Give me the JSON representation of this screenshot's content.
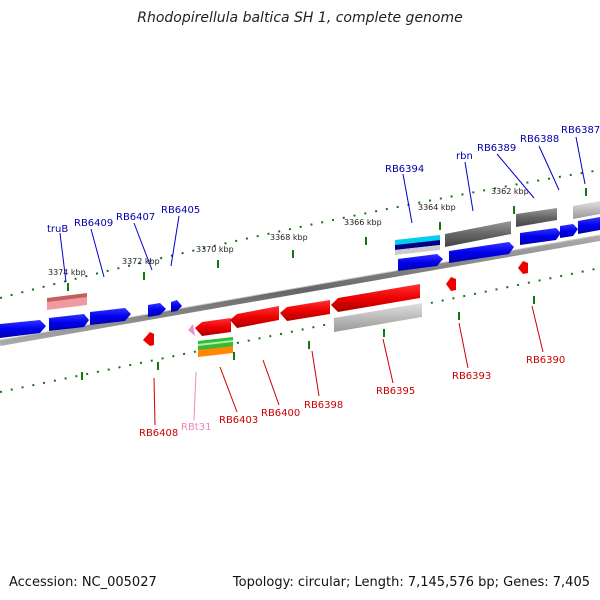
{
  "title": "Rhodopirellula baltica SH 1, complete genome",
  "footer": {
    "accession": "Accession: NC_005027",
    "info": "Topology: circular; Length: 7,145,576 bp; Genes: 7,405"
  },
  "colors": {
    "forward_gene": "#0000ee",
    "reverse_gene": "#dd0000",
    "gene_label_forward": "#0000aa",
    "gene_label_reverse": "#cc0000",
    "rna_label": "#ee88bb",
    "tick": "#117711",
    "backbone": "#777777",
    "gray_gene": "#666666",
    "lightgray_gene": "#bbbbbb",
    "cyan_gene": "#00ccee",
    "green_gene": "#33bb33",
    "orange_gene": "#ff8800",
    "pink_gene": "#f0a0a8"
  },
  "scale_labels": [
    {
      "text": "3374 kbp"
    },
    {
      "text": "3372 kbp"
    },
    {
      "text": "3370 kbp"
    },
    {
      "text": "3368 kbp"
    },
    {
      "text": "3366 kbp"
    },
    {
      "text": "3364 kbp"
    },
    {
      "text": "3362 kbp"
    }
  ],
  "forward_labels": [
    "truB",
    "RB6409",
    "RB6407",
    "RB6405",
    "RB6394",
    "rbn",
    "RB6389",
    "RB6388",
    "RB6387"
  ],
  "reverse_labels": [
    "RB6408",
    "RBt31",
    "RB6403",
    "RB6400",
    "RB6398",
    "RB6395",
    "RB6393",
    "RB6390"
  ]
}
